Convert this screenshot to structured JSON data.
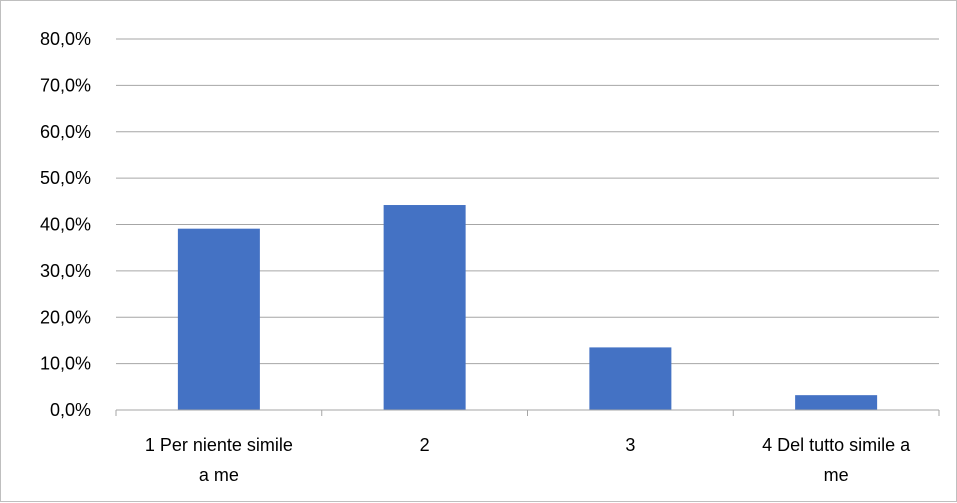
{
  "chart_data": {
    "type": "bar",
    "categories": [
      [
        "1 Per niente simile",
        "a me"
      ],
      [
        "2"
      ],
      [
        "3"
      ],
      [
        "4 Del tutto simile a",
        "me"
      ]
    ],
    "values": [
      39.1,
      44.2,
      13.5,
      3.2
    ],
    "y_ticks": [
      "0,0%",
      "10,0%",
      "20,0%",
      "30,0%",
      "40,0%",
      "50,0%",
      "60,0%",
      "70,0%",
      "80,0%"
    ],
    "ylim": [
      0,
      80
    ],
    "title": "",
    "xlabel": "",
    "ylabel": "",
    "grid": true,
    "legend": "none",
    "bar_color": "#4472c4",
    "grid_color": "#a6a6a6"
  }
}
